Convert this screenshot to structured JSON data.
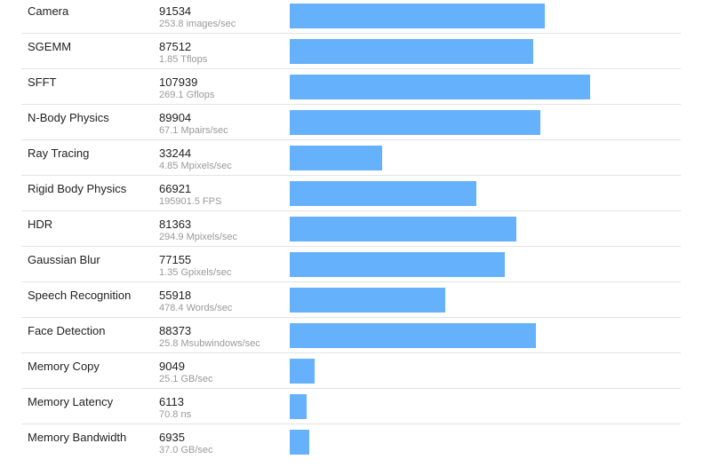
{
  "chart_data": {
    "type": "bar",
    "orientation": "horizontal",
    "grid": false,
    "rows": [
      {
        "name": "Camera",
        "score": 91534,
        "rate": "253.8 images/sec"
      },
      {
        "name": "SGEMM",
        "score": 87512,
        "rate": "1.85 Tflops"
      },
      {
        "name": "SFFT",
        "score": 107939,
        "rate": "269.1 Gflops"
      },
      {
        "name": "N-Body Physics",
        "score": 89904,
        "rate": "67.1 Mpairs/sec"
      },
      {
        "name": "Ray Tracing",
        "score": 33244,
        "rate": "4.85 Mpixels/sec"
      },
      {
        "name": "Rigid Body Physics",
        "score": 66921,
        "rate": "195901.5 FPS"
      },
      {
        "name": "HDR",
        "score": 81363,
        "rate": "294.9 Mpixels/sec"
      },
      {
        "name": "Gaussian Blur",
        "score": 77155,
        "rate": "1.35 Gpixels/sec"
      },
      {
        "name": "Speech Recognition",
        "score": 55918,
        "rate": "478.4 Words/sec"
      },
      {
        "name": "Face Detection",
        "score": 88373,
        "rate": "25.8 Msubwindows/sec"
      },
      {
        "name": "Memory Copy",
        "score": 9049,
        "rate": "25.1 GB/sec"
      },
      {
        "name": "Memory Latency",
        "score": 6113,
        "rate": "70.8 ns"
      },
      {
        "name": "Memory Bandwidth",
        "score": 6935,
        "rate": "37.0 GB/sec"
      }
    ],
    "bar_color": "#66b1fb"
  }
}
